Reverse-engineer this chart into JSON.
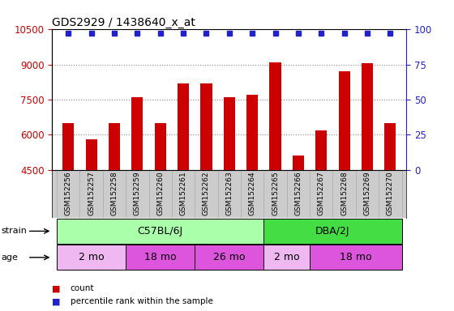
{
  "title": "GDS2929 / 1438640_x_at",
  "samples": [
    "GSM152256",
    "GSM152257",
    "GSM152258",
    "GSM152259",
    "GSM152260",
    "GSM152261",
    "GSM152262",
    "GSM152263",
    "GSM152264",
    "GSM152265",
    "GSM152266",
    "GSM152267",
    "GSM152268",
    "GSM152269",
    "GSM152270"
  ],
  "counts": [
    6500,
    5800,
    6500,
    7600,
    6500,
    8200,
    8200,
    7600,
    7700,
    9100,
    5100,
    6200,
    8700,
    9050,
    6500
  ],
  "bar_color": "#cc0000",
  "dot_color": "#2222cc",
  "ylim_left": [
    4500,
    10500
  ],
  "ylim_right": [
    0,
    100
  ],
  "yticks_left": [
    4500,
    6000,
    7500,
    9000,
    10500
  ],
  "yticks_right": [
    0,
    25,
    50,
    75,
    100
  ],
  "bg_color": "#ffffff",
  "strain_groups": [
    {
      "label": "C57BL/6J",
      "start": 0,
      "end": 8,
      "color": "#aaffaa"
    },
    {
      "label": "DBA/2J",
      "start": 9,
      "end": 14,
      "color": "#44dd44"
    }
  ],
  "age_groups": [
    {
      "label": "2 mo",
      "start": 0,
      "end": 2,
      "color": "#f0b8f0"
    },
    {
      "label": "18 mo",
      "start": 3,
      "end": 5,
      "color": "#dd55dd"
    },
    {
      "label": "26 mo",
      "start": 6,
      "end": 8,
      "color": "#dd55dd"
    },
    {
      "label": "2 mo",
      "start": 9,
      "end": 10,
      "color": "#f0b8f0"
    },
    {
      "label": "18 mo",
      "start": 11,
      "end": 14,
      "color": "#dd55dd"
    }
  ],
  "ylabel_left_color": "#cc0000",
  "ylabel_right_color": "#2222cc",
  "title_color": "#000000",
  "label_area_color": "#cccccc",
  "legend_items": [
    {
      "label": "count",
      "color": "#cc0000"
    },
    {
      "label": "percentile rank within the sample",
      "color": "#2222cc"
    }
  ]
}
